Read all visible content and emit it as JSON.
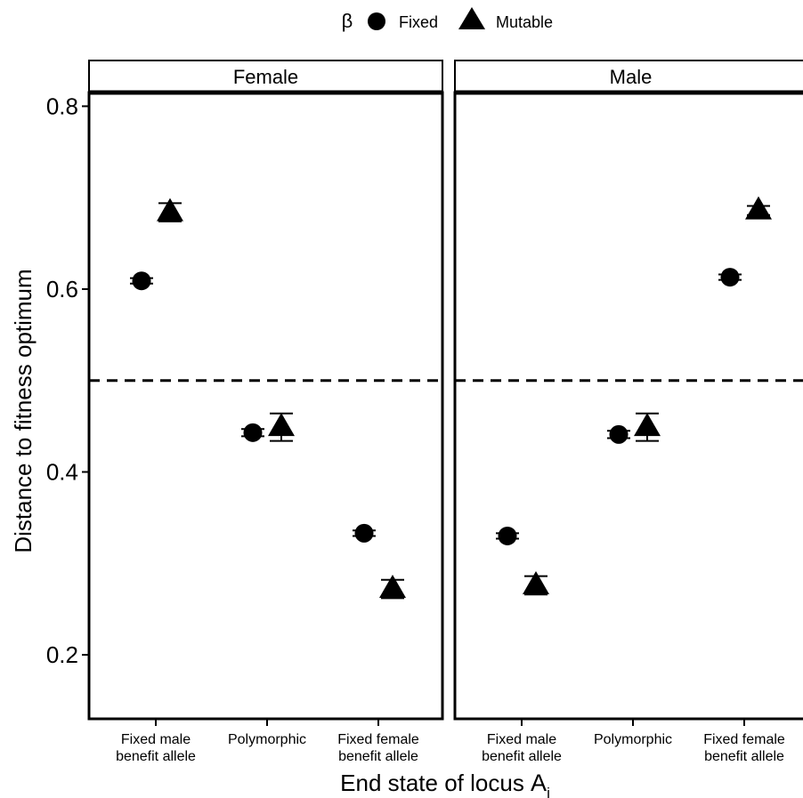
{
  "legend": {
    "title": "β",
    "items": [
      {
        "label": "Fixed",
        "shape": "circle"
      },
      {
        "label": "Mutable",
        "shape": "triangle"
      }
    ]
  },
  "axes": {
    "xlabel_main": "End state of locus ",
    "xlabel_symbol": "A",
    "xlabel_subscript": "i",
    "ylabel": "Distance to fitness optimum"
  },
  "chart_data": {
    "type": "scatter",
    "facets": [
      "Female",
      "Male"
    ],
    "categories": [
      [
        "Fixed male",
        "benefit allele"
      ],
      [
        "Polymorphic"
      ],
      [
        "Fixed female",
        "benefit allele"
      ]
    ],
    "yticks": [
      "0.2",
      "0.4",
      "0.6",
      "0.8"
    ],
    "ylim": [
      0.13,
      0.815
    ],
    "reference_line_y": 0.5,
    "grid": false,
    "legend_position": "top",
    "series": [
      {
        "name": "Fixed",
        "shape": "circle",
        "values": {
          "Female": [
            0.609,
            0.443,
            0.333
          ],
          "Male": [
            0.33,
            0.441,
            0.613
          ]
        },
        "error": {
          "Female": [
            0.003,
            0.004,
            0.003
          ],
          "Male": [
            0.003,
            0.004,
            0.003
          ]
        }
      },
      {
        "name": "Mutable",
        "shape": "triangle",
        "values": {
          "Female": [
            0.684,
            0.449,
            0.272
          ],
          "Male": [
            0.276,
            0.449,
            0.686
          ]
        },
        "error": {
          "Female": [
            0.01,
            0.015,
            0.01
          ],
          "Male": [
            0.01,
            0.015,
            0.005
          ]
        }
      }
    ]
  },
  "colors": {
    "ink": "#000000",
    "background": "#ffffff"
  }
}
